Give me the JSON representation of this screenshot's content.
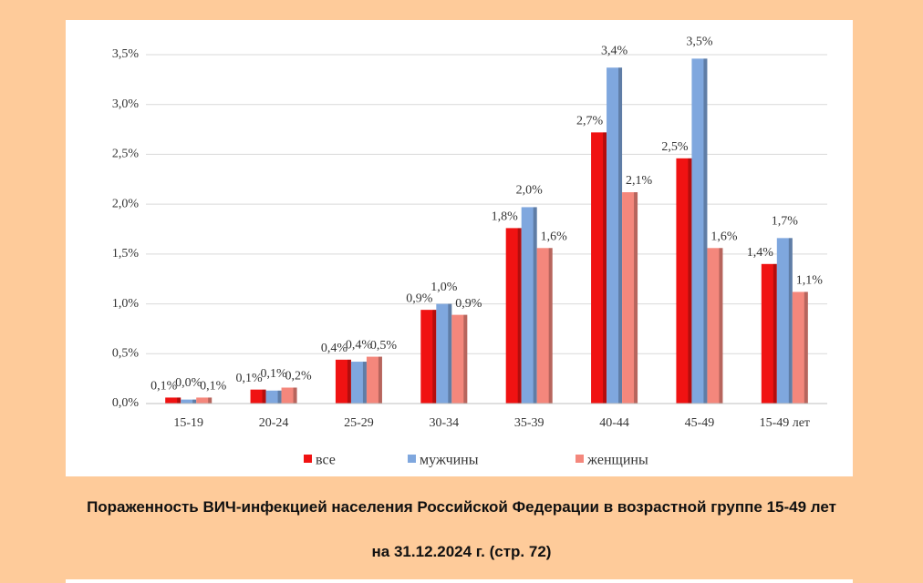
{
  "chart_data": {
    "type": "bar",
    "title": "Пораженность ВИЧ-инфекцией населения Российской Федерации в возрастной группе 15-49 лет",
    "subtitle": "на 31.12.2024 г. (стр. 72)",
    "categories": [
      "15-19",
      "20-24",
      "25-29",
      "30-34",
      "35-39",
      "40-44",
      "45-49",
      "15-49 лет"
    ],
    "series": [
      {
        "name": "все",
        "color": "#f01212",
        "values": [
          0.06,
          0.14,
          0.44,
          0.94,
          1.76,
          2.72,
          2.46,
          1.4
        ],
        "value_labels": [
          "0,1%",
          "0,1%",
          "0,4%",
          "0,9%",
          "1,8%",
          "2,7%",
          "2,5%",
          "1,4%"
        ]
      },
      {
        "name": "мужчины",
        "color": "#7fa7de",
        "values": [
          0.04,
          0.13,
          0.42,
          1.0,
          1.97,
          3.37,
          3.46,
          1.66
        ],
        "value_labels": [
          "0,0%",
          "0,1%",
          "0,4%",
          "1,0%",
          "2,0%",
          "3,4%",
          "3,5%",
          "1,7%"
        ]
      },
      {
        "name": "женщины",
        "color": "#f4877c",
        "values": [
          0.06,
          0.16,
          0.47,
          0.89,
          1.56,
          2.12,
          1.56,
          1.12
        ],
        "value_labels": [
          "0,1%",
          "0,2%",
          "0,5%",
          "0,9%",
          "1,6%",
          "2,1%",
          "1,6%",
          "1,1%"
        ]
      }
    ],
    "ylim": [
      0,
      3.5
    ],
    "yticks": [
      {
        "value": 0,
        "label": "0,0%"
      },
      {
        "value": 0.5,
        "label": "0,5%"
      },
      {
        "value": 1,
        "label": "1,0%"
      },
      {
        "value": 1.5,
        "label": "1,5%"
      },
      {
        "value": 2,
        "label": "2,0%"
      },
      {
        "value": 2.5,
        "label": "2,5%"
      },
      {
        "value": 3,
        "label": "3,0%"
      },
      {
        "value": 3.5,
        "label": "3,5%"
      }
    ],
    "grid": true,
    "legend": "bottom"
  }
}
